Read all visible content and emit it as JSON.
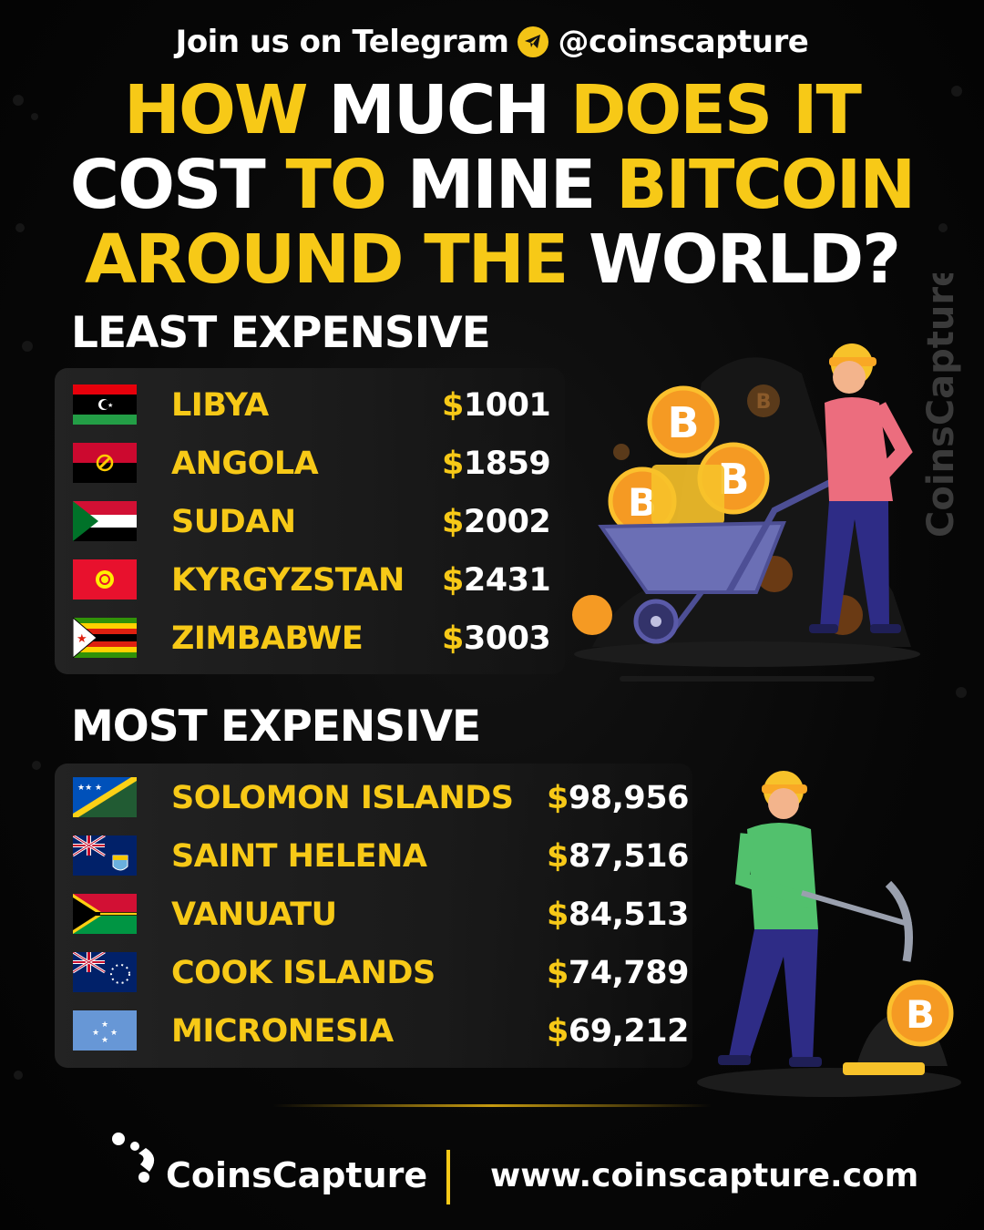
{
  "header": {
    "telegram_prefix": "Join us on Telegram",
    "telegram_handle": "@coinscapture",
    "telegram_icon": "telegram-icon"
  },
  "headline": {
    "line1": [
      {
        "text": "HOW ",
        "color": "#f7c917"
      },
      {
        "text": "MUCH ",
        "color": "#ffffff"
      },
      {
        "text": "DOES IT",
        "color": "#f7c917"
      }
    ],
    "line2": [
      {
        "text": "COST ",
        "color": "#ffffff"
      },
      {
        "text": "TO ",
        "color": "#f7c917"
      },
      {
        "text": "MINE ",
        "color": "#ffffff"
      },
      {
        "text": "BITCOIN",
        "color": "#f7c917"
      }
    ],
    "line3": [
      {
        "text": "AROUND THE ",
        "color": "#f7c917"
      },
      {
        "text": "WORLD?",
        "color": "#ffffff"
      }
    ]
  },
  "least": {
    "title": "LEAST EXPENSIVE",
    "rows": [
      {
        "country": "LIBYA",
        "symbol": "$",
        "amount": "1001",
        "flag": "libya-flag"
      },
      {
        "country": "ANGOLA",
        "symbol": "$",
        "amount": "1859",
        "flag": "angola-flag"
      },
      {
        "country": "SUDAN",
        "symbol": "$",
        "amount": "2002",
        "flag": "sudan-flag"
      },
      {
        "country": "KYRGYZSTAN",
        "symbol": "$",
        "amount": "2431",
        "flag": "kyrgyzstan-flag"
      },
      {
        "country": "ZIMBABWE",
        "symbol": "$",
        "amount": "3003",
        "flag": "zimbabwe-flag"
      }
    ]
  },
  "most": {
    "title": "MOST EXPENSIVE",
    "rows": [
      {
        "country": "SOLOMON ISLANDS",
        "symbol": "$",
        "amount": "98,956",
        "flag": "solomon-islands-flag"
      },
      {
        "country": "SAINT HELENA",
        "symbol": "$",
        "amount": "87,516",
        "flag": "saint-helena-flag"
      },
      {
        "country": "VANUATU",
        "symbol": "$",
        "amount": "84,513",
        "flag": "vanuatu-flag"
      },
      {
        "country": "COOK ISLANDS",
        "symbol": "$",
        "amount": "74,789",
        "flag": "cook-islands-flag"
      },
      {
        "country": "MICRONESIA",
        "symbol": "$",
        "amount": "69,212",
        "flag": "micronesia-flag"
      }
    ]
  },
  "watermark": "CoinsCapture",
  "footer": {
    "brand": "CoinsCapture",
    "website": "www.coinscapture.com",
    "logo_icon": "coinscapture-logo-icon"
  },
  "colors": {
    "accent": "#f7c917",
    "background": "#050505",
    "panel": "#202020"
  }
}
